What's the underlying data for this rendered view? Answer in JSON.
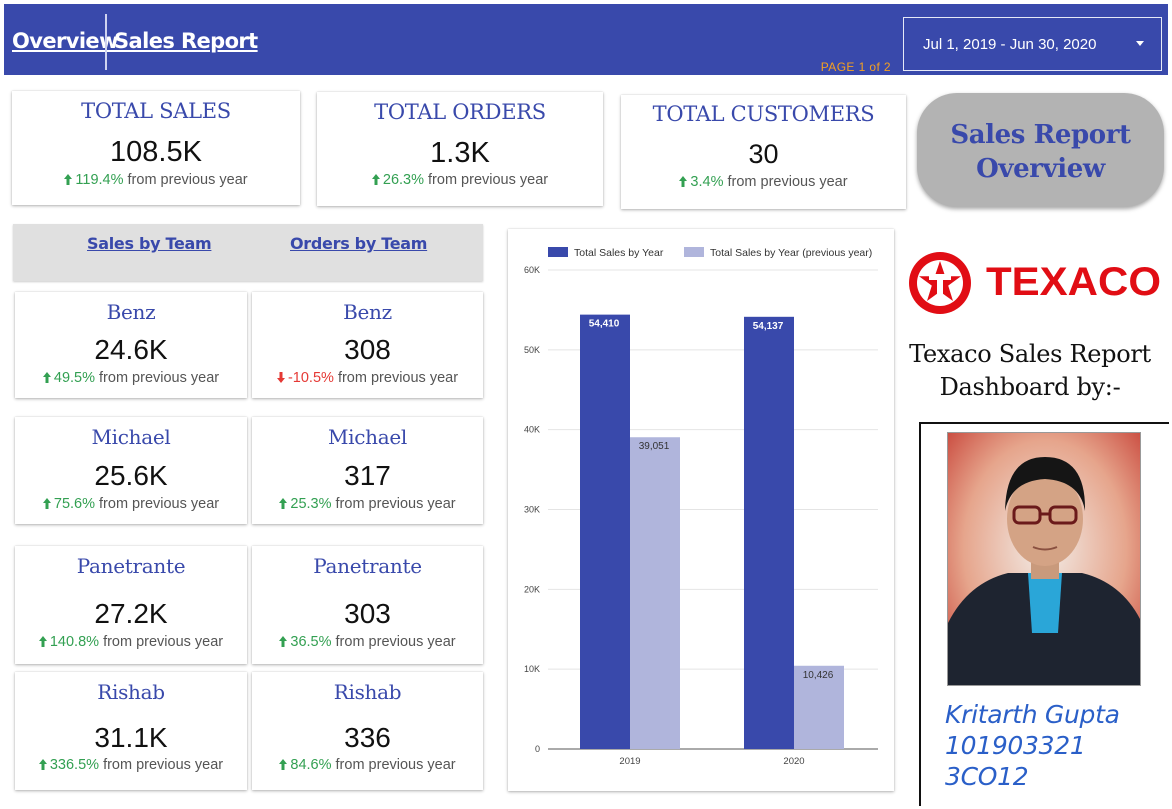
{
  "header": {
    "nav_overview": "Overview",
    "nav_sales_report": "Sales Report",
    "page_indicator": "PAGE  1 of 2",
    "date_range": "Jul 1, 2019 - Jun 30, 2020",
    "background_color": "#3949ab"
  },
  "kpis": [
    {
      "title": "TOTAL SALES",
      "value": "108.5K",
      "delta": "119.4%",
      "delta_suffix": "from previous year",
      "direction": "up"
    },
    {
      "title": "TOTAL ORDERS",
      "value": "1.3K",
      "delta": "26.3%",
      "delta_suffix": "from previous year",
      "direction": "up"
    },
    {
      "title": "TOTAL CUSTOMERS",
      "value": "30",
      "delta": "3.4%",
      "delta_suffix": "from previous year",
      "direction": "up"
    }
  ],
  "overview_button": {
    "line1": "Sales Report",
    "line2": "Overview"
  },
  "tabs": {
    "sales_by_team": "Sales by Team",
    "orders_by_team": "Orders by Team"
  },
  "teams": [
    {
      "name": "Benz",
      "sales": {
        "value": "24.6K",
        "delta": "49.5%",
        "direction": "up",
        "suffix": "from previous year"
      },
      "orders": {
        "value": "308",
        "delta": "-10.5%",
        "direction": "down",
        "suffix": "from previous year"
      }
    },
    {
      "name": "Michael",
      "sales": {
        "value": "25.6K",
        "delta": "75.6%",
        "direction": "up",
        "suffix": "from previous year"
      },
      "orders": {
        "value": "317",
        "delta": "25.3%",
        "direction": "up",
        "suffix": "from previous year"
      }
    },
    {
      "name": "Panetrante",
      "sales": {
        "value": "27.2K",
        "delta": "140.8%",
        "direction": "up",
        "suffix": "from previous year"
      },
      "orders": {
        "value": "303",
        "delta": "36.5%",
        "direction": "up",
        "suffix": "from previous year"
      }
    },
    {
      "name": "Rishab",
      "sales": {
        "value": "31.1K",
        "delta": "336.5%",
        "direction": "up",
        "suffix": "from previous year"
      },
      "orders": {
        "value": "336",
        "delta": "84.6%",
        "direction": "up",
        "suffix": "from previous year"
      }
    }
  ],
  "chart_data": {
    "type": "bar",
    "categories": [
      "2019",
      "2020"
    ],
    "series": [
      {
        "name": "Total Sales by Year",
        "values": [
          54410,
          54137
        ],
        "color": "#3949ab"
      },
      {
        "name": "Total Sales by Year (previous year)",
        "values": [
          39051,
          10426
        ],
        "color": "#b0b5dc"
      }
    ],
    "data_labels": [
      [
        "54,410",
        "54,137"
      ],
      [
        "39,051",
        "10,426"
      ]
    ],
    "y_ticks": [
      "0",
      "10K",
      "20K",
      "30K",
      "40K",
      "50K",
      "60K"
    ],
    "ylim": [
      0,
      60000
    ],
    "grid": true,
    "legend_position": "top"
  },
  "brand": {
    "name": "TEXACO",
    "color": "#e10d14"
  },
  "side_caption": {
    "line1": "Texaco Sales Report",
    "line2": "Dashboard by:-"
  },
  "author": {
    "name": "Kritarth Gupta",
    "roll": "101903321",
    "group": "3CO12"
  }
}
